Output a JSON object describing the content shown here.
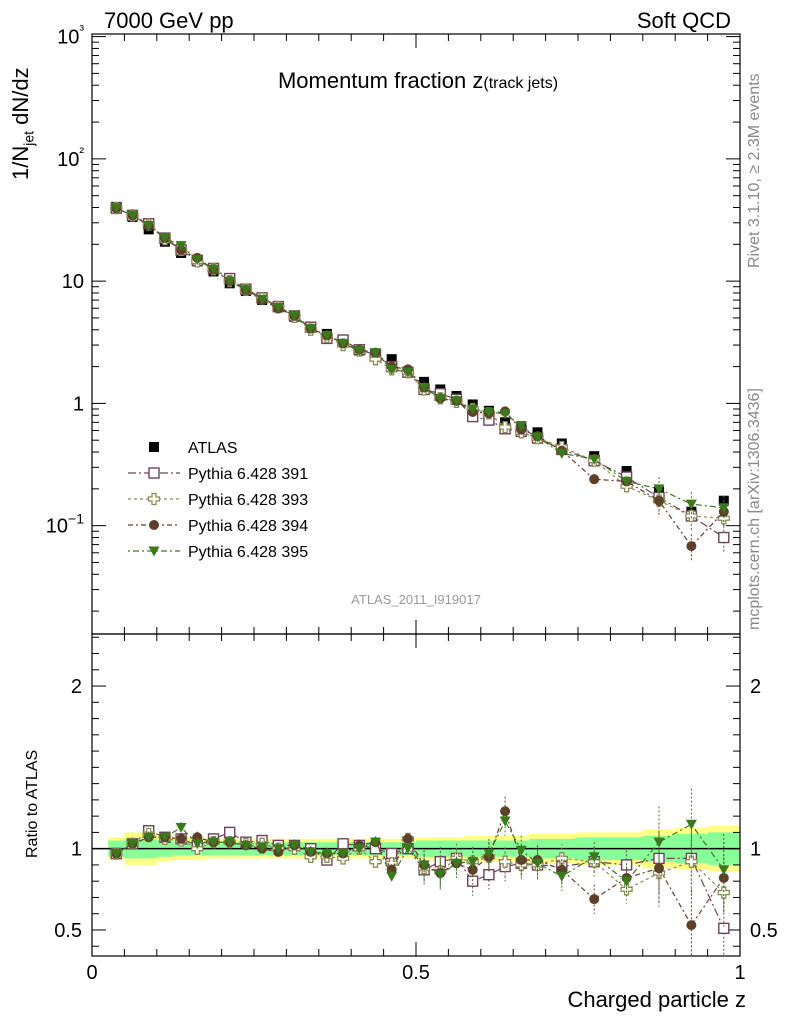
{
  "header": {
    "energy": "7000 GeV pp",
    "process": "Soft QCD"
  },
  "side_text": {
    "rivet": "Rivet 3.1.10, ≥ 2.3M events",
    "mcplots": "mcplots.cern.ch [arXiv:1306.3436]"
  },
  "colors": {
    "atlas": "#000000",
    "p391": "#6b4459",
    "p393": "#8c8a55",
    "p394": "#5e3f2a",
    "p395": "#3a7a1c",
    "band_yellow": "#ffff88",
    "band_green": "#88ff99"
  },
  "chart_data": [
    {
      "type": "scatter",
      "title": "Momentum fraction z(track jets)",
      "title_main": "Momentum fraction ",
      "title_z": "z",
      "title_sub": "(track jets)",
      "watermark": "ATLAS_2011_I919017",
      "ylabel": "1/N_jet dN/dz",
      "ylabel_main": "1/N",
      "ylabel_sub": "jet",
      "ylabel_rest": " dN/dz",
      "yscale": "log",
      "xlim": [
        0,
        1
      ],
      "ylim": [
        0.013,
        1050
      ],
      "yticks": [
        "10−1",
        "1",
        "10",
        "10²",
        "10³"
      ],
      "legend_position": "center-left",
      "x": [
        0.0375,
        0.0625,
        0.0875,
        0.1125,
        0.1375,
        0.1625,
        0.1875,
        0.2125,
        0.2375,
        0.2625,
        0.2875,
        0.3125,
        0.3375,
        0.3625,
        0.3875,
        0.4125,
        0.4375,
        0.4625,
        0.4875,
        0.5125,
        0.5375,
        0.5625,
        0.5875,
        0.6125,
        0.6375,
        0.6625,
        0.6875,
        0.725,
        0.775,
        0.825,
        0.875,
        0.925,
        0.975
      ],
      "series": [
        {
          "name": "ATLAS",
          "key": "atlas",
          "marker": "square-filled",
          "values": [
            40.5,
            33.5,
            26.5,
            21.0,
            17.0,
            14.5,
            12.0,
            9.6,
            8.3,
            7.0,
            6.1,
            5.1,
            4.2,
            3.7,
            3.2,
            2.7,
            2.5,
            2.3,
            1.8,
            1.5,
            1.3,
            1.15,
            0.98,
            0.87,
            0.7,
            0.65,
            0.58,
            0.47,
            0.37,
            0.28,
            0.19,
            0.13,
            0.16
          ]
        },
        {
          "name": "Pythia 6.428 391",
          "key": "p391",
          "marker": "square-open",
          "values": [
            39.5,
            34.5,
            29.5,
            22.5,
            18.0,
            14.8,
            12.7,
            10.5,
            8.6,
            7.3,
            6.2,
            5.2,
            4.2,
            3.4,
            3.3,
            2.75,
            2.5,
            2.0,
            1.8,
            1.3,
            1.2,
            1.08,
            0.78,
            0.73,
            0.62,
            0.59,
            0.52,
            0.42,
            0.34,
            0.25,
            0.17,
            0.12,
            0.08
          ]
        },
        {
          "name": "Pythia 6.428 393",
          "key": "p393",
          "marker": "cross-open",
          "values": [
            39.5,
            34.5,
            29.0,
            22.0,
            18.0,
            14.5,
            12.5,
            10.0,
            8.5,
            7.2,
            6.1,
            5.1,
            4.0,
            3.5,
            3.0,
            2.7,
            2.3,
            1.9,
            1.8,
            1.3,
            1.1,
            1.03,
            0.9,
            0.83,
            0.64,
            0.58,
            0.52,
            0.44,
            0.34,
            0.21,
            0.16,
            0.12,
            0.115
          ]
        },
        {
          "name": "Pythia 6.428 394",
          "key": "p394",
          "marker": "circle-filled",
          "values": [
            39.5,
            34.5,
            28.5,
            22.5,
            18.0,
            15.5,
            12.5,
            10.0,
            8.5,
            7.0,
            6.0,
            5.2,
            4.1,
            3.6,
            3.1,
            2.75,
            2.6,
            2.0,
            1.9,
            1.35,
            1.1,
            1.05,
            0.85,
            0.83,
            0.86,
            0.61,
            0.54,
            0.41,
            0.24,
            0.23,
            0.16,
            0.068,
            0.13
          ]
        },
        {
          "name": "Pythia 6.428 395",
          "key": "p395",
          "marker": "triangle-down-filled",
          "values": [
            39.5,
            34.5,
            28.5,
            22.5,
            19.5,
            15.0,
            12.5,
            10.0,
            8.5,
            7.1,
            6.1,
            5.2,
            4.1,
            3.6,
            3.1,
            2.7,
            2.6,
            1.9,
            1.8,
            1.35,
            1.1,
            1.05,
            0.9,
            0.85,
            0.82,
            0.65,
            0.53,
            0.39,
            0.35,
            0.23,
            0.2,
            0.15,
            0.14
          ]
        }
      ]
    },
    {
      "type": "scatter",
      "ylabel": "Ratio to ATLAS",
      "xlabel": "Charged particle z",
      "xlim": [
        0,
        1
      ],
      "ylim": [
        0.34,
        2.32
      ],
      "xticks": [
        "0",
        "0.5",
        "1"
      ],
      "yticks": [
        "0.5",
        "1",
        "2"
      ],
      "reference_line": 1,
      "band_yellow_halfwidth": [
        0.07,
        0.1,
        0.1,
        0.08,
        0.07,
        0.07,
        0.06,
        0.06,
        0.06,
        0.06,
        0.06,
        0.06,
        0.06,
        0.06,
        0.06,
        0.06,
        0.06,
        0.06,
        0.06,
        0.07,
        0.07,
        0.07,
        0.08,
        0.08,
        0.08,
        0.08,
        0.09,
        0.09,
        0.1,
        0.1,
        0.12,
        0.13,
        0.14
      ],
      "band_green_halfwidth": [
        0.05,
        0.06,
        0.06,
        0.05,
        0.04,
        0.04,
        0.04,
        0.04,
        0.04,
        0.04,
        0.04,
        0.04,
        0.04,
        0.04,
        0.04,
        0.04,
        0.04,
        0.04,
        0.04,
        0.05,
        0.05,
        0.05,
        0.05,
        0.05,
        0.05,
        0.05,
        0.06,
        0.06,
        0.07,
        0.07,
        0.08,
        0.09,
        0.1
      ],
      "series": [
        {
          "name": "Pythia 6.428 391",
          "key": "p391",
          "marker": "square-open",
          "values": [
            0.97,
            1.03,
            1.11,
            1.07,
            1.06,
            1.02,
            1.06,
            1.1,
            1.04,
            1.05,
            1.02,
            1.02,
            1.0,
            0.93,
            1.03,
            1.02,
            1.0,
            0.97,
            1.0,
            0.87,
            0.92,
            0.94,
            0.8,
            0.84,
            0.89,
            0.91,
            0.9,
            0.89,
            0.92,
            0.9,
            0.94,
            0.94,
            0.51
          ]
        },
        {
          "name": "Pythia 6.428 393",
          "key": "p393",
          "marker": "cross-open",
          "values": [
            0.97,
            1.03,
            1.09,
            1.06,
            1.05,
            1.0,
            1.04,
            1.04,
            1.03,
            1.03,
            1.0,
            1.0,
            0.95,
            0.95,
            0.94,
            1.0,
            0.92,
            0.91,
            1.06,
            0.88,
            0.86,
            0.94,
            0.92,
            0.95,
            0.92,
            0.9,
            0.9,
            0.94,
            0.92,
            0.75,
            0.85,
            0.92,
            0.73
          ]
        },
        {
          "name": "Pythia 6.428 394",
          "key": "p394",
          "marker": "circle-filled",
          "values": [
            0.97,
            1.03,
            1.07,
            1.07,
            1.06,
            1.07,
            1.04,
            1.04,
            1.02,
            1.0,
            0.98,
            1.02,
            0.98,
            0.97,
            0.97,
            1.02,
            1.04,
            0.87,
            1.06,
            0.9,
            0.85,
            0.91,
            0.87,
            0.95,
            1.23,
            0.93,
            0.93,
            0.87,
            0.69,
            0.82,
            0.88,
            0.53,
            0.82
          ]
        },
        {
          "name": "Pythia 6.428 395",
          "key": "p395",
          "marker": "triangle-down-filled",
          "values": [
            0.97,
            1.03,
            1.07,
            1.07,
            1.13,
            1.03,
            1.04,
            1.04,
            1.02,
            1.01,
            1.0,
            1.02,
            0.98,
            0.97,
            0.97,
            1.0,
            1.04,
            0.83,
            1.0,
            0.9,
            0.84,
            0.91,
            0.92,
            0.97,
            1.17,
            0.99,
            0.91,
            0.83,
            0.95,
            0.8,
            1.04,
            1.15,
            0.87
          ]
        }
      ]
    }
  ]
}
